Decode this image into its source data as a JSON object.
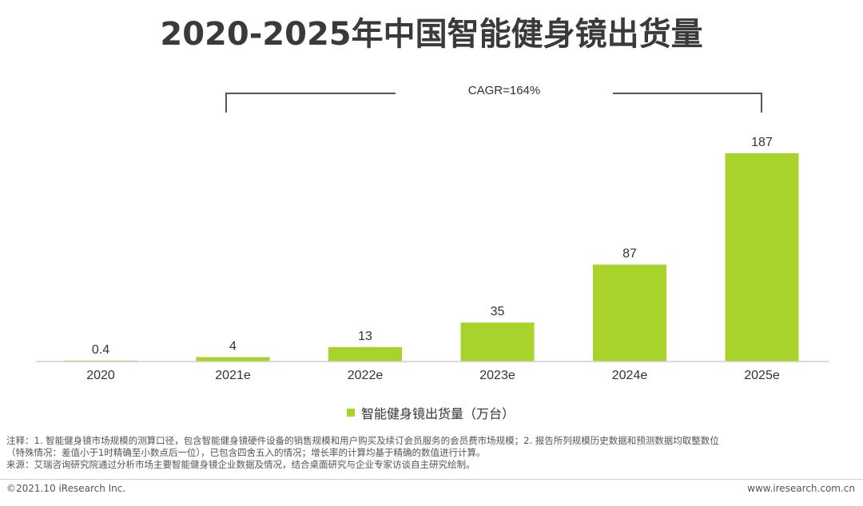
{
  "title": "2020-2025年中国智能健身镜出货量",
  "cagr_label": "CAGR=164%",
  "legend_label": "智能健身镜出货量（万台）",
  "bar_color": "#a8d32b",
  "chart_data": {
    "type": "bar",
    "title": "2020-2025年中国智能健身镜出货量",
    "categories": [
      "2020",
      "2021e",
      "2022e",
      "2023e",
      "2024e",
      "2025e"
    ],
    "series": [
      {
        "name": "智能健身镜出货量（万台）",
        "values": [
          0.4,
          4,
          13,
          35,
          87,
          187
        ]
      }
    ],
    "data_labels": [
      "0.4",
      "4",
      "13",
      "35",
      "87",
      "187"
    ],
    "annotations": [
      "CAGR=164%"
    ],
    "ylim": [
      0,
      187
    ],
    "legend_position": "bottom",
    "grid": false
  },
  "notes": {
    "line1": "注释：1. 智能健身镜市场规模的测算口径，包含智能健身镜硬件设备的销售规模和用户购买及续订会员服务的会员费市场规模；2. 报告所列规模历史数据和预测数据均取整数位",
    "line2": "（特殊情况：差值小于1时精确至小数点后一位），已包含四舍五入的情况；增长率的计算均基于精确的数值进行计算。",
    "line3": "来源：艾瑞咨询研究院通过分析市场主要智能健身镜企业数据及情况，结合桌面研究与企业专家访谈自主研究绘制。"
  },
  "footer": {
    "copyright": "©2021.10 iResearch Inc.",
    "website": "www.iresearch.com.cn"
  }
}
